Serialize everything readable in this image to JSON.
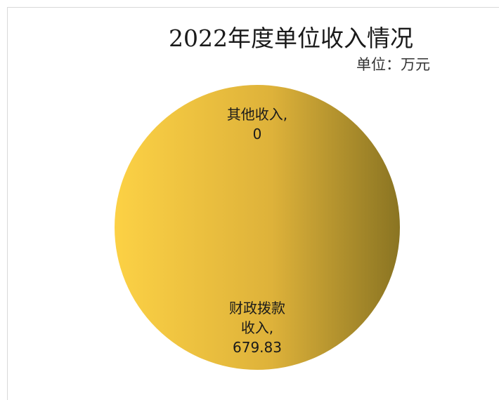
{
  "chart_data": {
    "type": "pie",
    "title": "2022年度单位收入情况",
    "subtitle": "单位：万元",
    "legend": "none",
    "categories": [
      "其他收入",
      "财政拨款收入"
    ],
    "values": [
      0,
      679.83
    ],
    "data_labels": [
      {
        "lines": [
          "其他收入,",
          "0"
        ]
      },
      {
        "lines": [
          "财政拨款",
          "收入,",
          "679.83"
        ]
      }
    ],
    "colors": {
      "gradient_light": "#fcd145",
      "gradient_mid": "#deb23a",
      "gradient_dark": "#8a7422"
    }
  }
}
